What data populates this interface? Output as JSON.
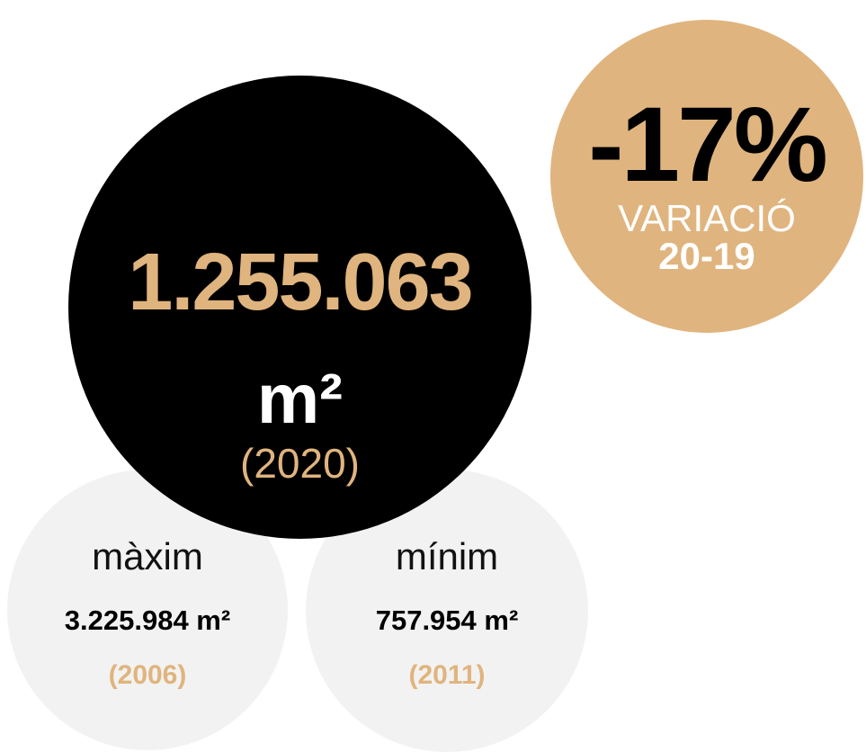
{
  "colors": {
    "accent": "#e0b47e",
    "main_circle": "#000000",
    "secondary_circles": "#f2f2f2",
    "text_dark": "#000000",
    "text_light": "#ffffff"
  },
  "main": {
    "value": "1.255.063",
    "unit": "m²",
    "year": "(2020)"
  },
  "variation": {
    "value": "-17%",
    "label": "VARIACIÓ",
    "period": "20-19"
  },
  "maximum": {
    "label": "màxim",
    "value": "3.225.984  m²",
    "year": "(2006)"
  },
  "minimum": {
    "label": "mínim",
    "value": "757.954 m²",
    "year": "(2011)"
  }
}
